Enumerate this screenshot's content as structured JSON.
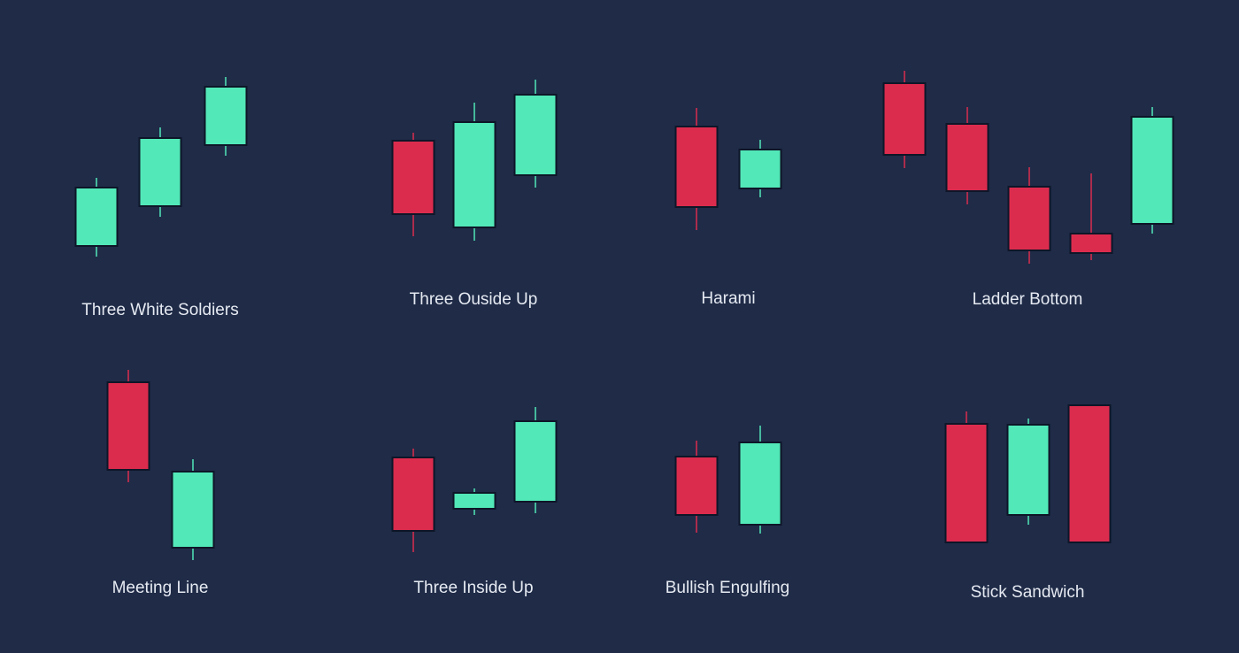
{
  "patterns": [
    {
      "label": "Three White Soldiers"
    },
    {
      "label": "Three Ouside Up"
    },
    {
      "label": "Harami"
    },
    {
      "label": "Ladder Bottom"
    },
    {
      "label": "Meeting Line"
    },
    {
      "label": "Three Inside Up"
    },
    {
      "label": "Bullish Engulfing"
    },
    {
      "label": "Stick Sandwich"
    }
  ]
}
